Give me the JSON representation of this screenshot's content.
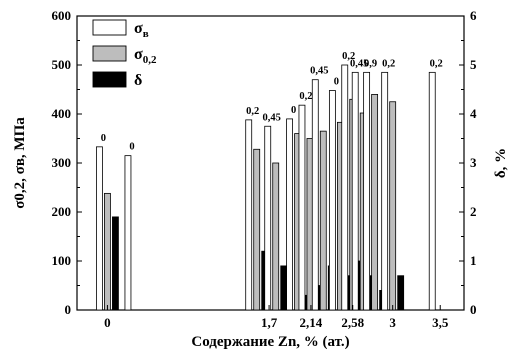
{
  "chart_data": {
    "type": "bar",
    "xlabel": "Содержание Zn, % (ат.)",
    "ylabel_left": "σ0,2, σв, МПа",
    "ylabel_right": "δ, %",
    "ylim_left": [
      0,
      600
    ],
    "ylim_right": [
      0,
      6
    ],
    "yticks_left": [
      0,
      100,
      200,
      300,
      400,
      500,
      600
    ],
    "yticks_right": [
      0,
      1,
      2,
      3,
      4,
      5,
      6
    ],
    "grid": false,
    "legend_position": "top-left",
    "legend": [
      {
        "symbol": "σ",
        "sub": "в",
        "fill": "#ffffff"
      },
      {
        "symbol": "σ",
        "sub": "0,2",
        "fill": "#bdbdbd"
      },
      {
        "symbol": "δ",
        "sub": "",
        "fill": "#000000"
      }
    ],
    "x_tick_labels": [
      {
        "label": "0",
        "x": 0
      },
      {
        "label": "1,7",
        "x": 1.7
      },
      {
        "label": "2,14",
        "x": 2.14
      },
      {
        "label": "2,58",
        "x": 2.58
      },
      {
        "label": "3",
        "x": 3
      },
      {
        "label": "3,5",
        "x": 3.5
      }
    ],
    "groups": [
      {
        "x": 0.0,
        "sigma_b": 333,
        "sigma_02": 238,
        "delta": 1.9,
        "annotation": "0"
      },
      {
        "x": 0.3,
        "sigma_b": 315,
        "sigma_02": null,
        "delta": null,
        "annotation": "0"
      },
      {
        "x": 1.57,
        "sigma_b": 388,
        "sigma_02": 328,
        "delta": 1.2,
        "annotation": "0,2"
      },
      {
        "x": 1.77,
        "sigma_b": 375,
        "sigma_02": 300,
        "delta": 0.9,
        "annotation": "0,45"
      },
      {
        "x": 2.0,
        "sigma_b": 390,
        "sigma_02": 360,
        "delta": 0.3,
        "annotation": "0"
      },
      {
        "x": 2.13,
        "sigma_b": 418,
        "sigma_02": 350,
        "delta": 0.5,
        "annotation": "0,2"
      },
      {
        "x": 2.27,
        "sigma_b": 470,
        "sigma_02": 365,
        "delta": 0.9,
        "annotation": "0,45"
      },
      {
        "x": 2.45,
        "sigma_b": 448,
        "sigma_02": 383,
        "delta": 0.7,
        "annotation": "0"
      },
      {
        "x": 2.58,
        "sigma_b": 500,
        "sigma_02": 430,
        "delta": 1.0,
        "annotation": "0,2"
      },
      {
        "x": 2.69,
        "sigma_b": 485,
        "sigma_02": 402,
        "delta": 0.7,
        "annotation": "0,45"
      },
      {
        "x": 2.81,
        "sigma_b": 485,
        "sigma_02": 440,
        "delta": 0.4,
        "annotation": "0,9"
      },
      {
        "x": 3.0,
        "sigma_b": 485,
        "sigma_02": 425,
        "delta": 0.7,
        "annotation": "0,2"
      },
      {
        "x": 3.5,
        "sigma_b": 485,
        "sigma_02": null,
        "delta": null,
        "annotation": "0,2"
      }
    ]
  }
}
